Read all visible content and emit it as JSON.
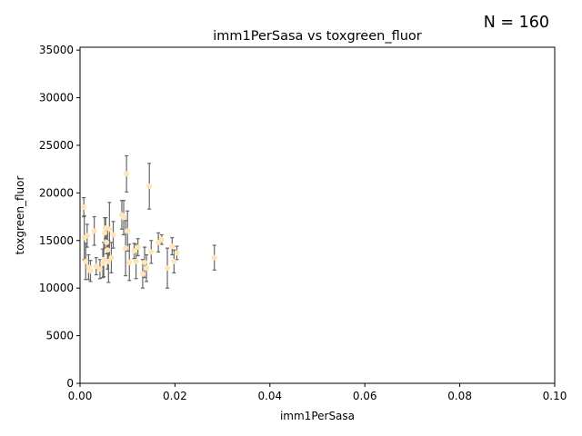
{
  "chart_data": {
    "type": "scatter",
    "title": "imm1PerSasa vs toxgreen_fluor",
    "annotation": "N = 160",
    "xlabel": "imm1PerSasa",
    "ylabel": "toxgreen_fluor",
    "xlim": [
      0,
      0.1
    ],
    "ylim": [
      0,
      35300
    ],
    "xticks": [
      0,
      0.02,
      0.04,
      0.06,
      0.08,
      0.1
    ],
    "xtick_labels": [
      "0.00",
      "0.02",
      "0.04",
      "0.06",
      "0.08",
      "0.10"
    ],
    "yticks": [
      0,
      5000,
      10000,
      15000,
      20000,
      25000,
      30000,
      35000
    ],
    "ytick_labels": [
      "0",
      "5000",
      "10000",
      "15000",
      "20000",
      "25000",
      "30000",
      "35000"
    ],
    "grid": false,
    "marker_color": "#ffe4b5",
    "errorbar_color": "#666666",
    "points": [
      {
        "x": 0.0008,
        "y": 18500,
        "err": 1000
      },
      {
        "x": 0.0009,
        "y": 15300,
        "err": 2300
      },
      {
        "x": 0.0012,
        "y": 12800,
        "err": 1900
      },
      {
        "x": 0.0015,
        "y": 15500,
        "err": 1200
      },
      {
        "x": 0.0018,
        "y": 12200,
        "err": 1300
      },
      {
        "x": 0.0022,
        "y": 11800,
        "err": 1100
      },
      {
        "x": 0.003,
        "y": 16000,
        "err": 1500
      },
      {
        "x": 0.0034,
        "y": 12300,
        "err": 900
      },
      {
        "x": 0.0042,
        "y": 12000,
        "err": 1000
      },
      {
        "x": 0.0048,
        "y": 12600,
        "err": 1500
      },
      {
        "x": 0.005,
        "y": 13000,
        "err": 1800
      },
      {
        "x": 0.0052,
        "y": 15800,
        "err": 1600
      },
      {
        "x": 0.0054,
        "y": 16300,
        "err": 1100
      },
      {
        "x": 0.0056,
        "y": 14800,
        "err": 1200
      },
      {
        "x": 0.0058,
        "y": 14000,
        "err": 2000
      },
      {
        "x": 0.006,
        "y": 12800,
        "err": 2200
      },
      {
        "x": 0.0062,
        "y": 16200,
        "err": 2800
      },
      {
        "x": 0.0066,
        "y": 13200,
        "err": 1600
      },
      {
        "x": 0.007,
        "y": 15600,
        "err": 1400
      },
      {
        "x": 0.0088,
        "y": 17700,
        "err": 1500
      },
      {
        "x": 0.0092,
        "y": 17400,
        "err": 1800
      },
      {
        "x": 0.0096,
        "y": 14200,
        "err": 2900
      },
      {
        "x": 0.0098,
        "y": 22000,
        "err": 1900
      },
      {
        "x": 0.01,
        "y": 16000,
        "err": 2100
      },
      {
        "x": 0.0104,
        "y": 12700,
        "err": 1900
      },
      {
        "x": 0.0114,
        "y": 13900,
        "err": 800
      },
      {
        "x": 0.0118,
        "y": 12800,
        "err": 1800
      },
      {
        "x": 0.0122,
        "y": 14300,
        "err": 900
      },
      {
        "x": 0.0132,
        "y": 11500,
        "err": 1500
      },
      {
        "x": 0.0136,
        "y": 12700,
        "err": 1600
      },
      {
        "x": 0.014,
        "y": 12100,
        "err": 1400
      },
      {
        "x": 0.0146,
        "y": 20700,
        "err": 2400
      },
      {
        "x": 0.015,
        "y": 13800,
        "err": 1200
      },
      {
        "x": 0.0165,
        "y": 14800,
        "err": 1000
      },
      {
        "x": 0.0172,
        "y": 15100,
        "err": 500
      },
      {
        "x": 0.0184,
        "y": 12100,
        "err": 2100
      },
      {
        "x": 0.0194,
        "y": 14400,
        "err": 900
      },
      {
        "x": 0.0198,
        "y": 12800,
        "err": 1200
      },
      {
        "x": 0.0204,
        "y": 13700,
        "err": 700
      },
      {
        "x": 0.0283,
        "y": 13200,
        "err": 1300
      }
    ]
  }
}
